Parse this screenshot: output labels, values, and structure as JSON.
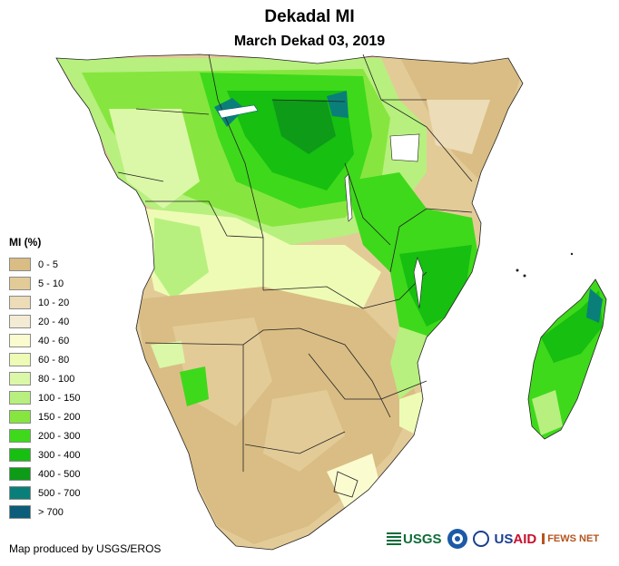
{
  "header": {
    "title": "Dekadal MI",
    "subtitle": "March Dekad 03, 2019"
  },
  "legend": {
    "title": "MI (%)",
    "items": [
      {
        "label": "0 - 5",
        "color": "#d9bd84"
      },
      {
        "label": "5 - 10",
        "color": "#e3cb98"
      },
      {
        "label": "10 - 20",
        "color": "#ecdcb8"
      },
      {
        "label": "20 - 40",
        "color": "#f4ebd4"
      },
      {
        "label": "40 - 60",
        "color": "#fbfbd0"
      },
      {
        "label": "60 - 80",
        "color": "#eefbb5"
      },
      {
        "label": "80 - 100",
        "color": "#dbf7a8"
      },
      {
        "label": "100 - 150",
        "color": "#b7f07e"
      },
      {
        "label": "150 - 200",
        "color": "#86e63f"
      },
      {
        "label": "200 - 300",
        "color": "#3ed91b"
      },
      {
        "label": "300 - 400",
        "color": "#16bf10"
      },
      {
        "label": "400 - 500",
        "color": "#0d9b18"
      },
      {
        "label": "500 - 700",
        "color": "#0a7f7a"
      },
      {
        "label": "> 700",
        "color": "#0b5d7a"
      }
    ]
  },
  "footer": {
    "credit": "Map produced by USGS/EROS",
    "logos": {
      "usgs": "USGS",
      "usaid_prefix": "US",
      "usaid_accent": "AID",
      "fews": "FEWS NET"
    }
  }
}
